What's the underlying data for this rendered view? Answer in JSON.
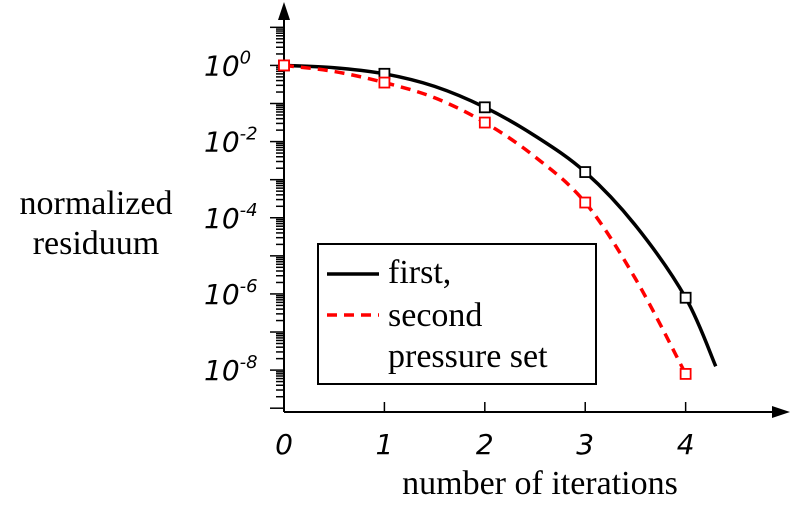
{
  "chart_data": {
    "type": "line",
    "xlabel": "number of iterations",
    "ylabel_lines": [
      "normalized",
      "residuum"
    ],
    "xlim": [
      0,
      4.9
    ],
    "ylim": [
      -9.1,
      1.35
    ],
    "yscale": "log",
    "xticks": [
      {
        "value": 0,
        "label": "0"
      },
      {
        "value": 1,
        "label": "1"
      },
      {
        "value": 2,
        "label": "2"
      },
      {
        "value": 3,
        "label": "3"
      },
      {
        "value": 4,
        "label": "4"
      }
    ],
    "yticks": [
      {
        "value": 0,
        "base": "10",
        "exp": "0"
      },
      {
        "value": -2,
        "base": "10",
        "exp": "-2"
      },
      {
        "value": -4,
        "base": "10",
        "exp": "-4"
      },
      {
        "value": -6,
        "base": "10",
        "exp": "-6"
      },
      {
        "value": -8,
        "base": "10",
        "exp": "-8"
      }
    ],
    "series": [
      {
        "name": "first,",
        "color": "#000000",
        "dash": "solid",
        "marker": "square",
        "x": [
          0,
          1,
          2,
          3,
          4
        ],
        "log10_y": [
          0,
          -0.22,
          -1.1,
          -2.8,
          -6.1
        ],
        "curve_x": [
          0,
          0.5,
          1,
          1.5,
          2,
          2.5,
          3,
          3.5,
          4,
          4.3
        ],
        "curve_log10_y": [
          0,
          -0.06,
          -0.22,
          -0.55,
          -1.1,
          -1.85,
          -2.8,
          -4.2,
          -6.1,
          -7.9
        ]
      },
      {
        "name": "second",
        "color": "#ff0000",
        "dash": "dashed",
        "marker": "square",
        "x": [
          0,
          1,
          2,
          3,
          4
        ],
        "log10_y": [
          0,
          -0.45,
          -1.5,
          -3.6,
          -8.1
        ],
        "curve_x": [
          0,
          0.5,
          1,
          1.5,
          2,
          2.5,
          3,
          3.5,
          4
        ],
        "curve_log10_y": [
          0,
          -0.16,
          -0.45,
          -0.85,
          -1.5,
          -2.4,
          -3.6,
          -5.6,
          -8.1
        ]
      }
    ],
    "legend": {
      "placement": "bottom-right",
      "lines": [
        "first,",
        "second",
        "pressure set"
      ]
    },
    "grid": false
  }
}
